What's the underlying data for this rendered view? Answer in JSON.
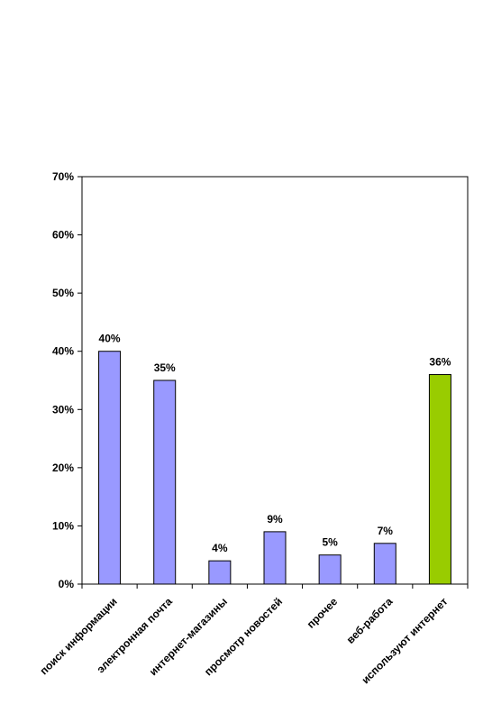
{
  "chart_data": {
    "type": "bar",
    "categories": [
      "поиск информации",
      "электронная почта",
      "интернет-магазины",
      "просмотр новостей",
      "прочее",
      "веб-работа",
      "используют интернет"
    ],
    "values": [
      40,
      35,
      4,
      9,
      5,
      7,
      36
    ],
    "data_labels": [
      "40%",
      "35%",
      "4%",
      "9%",
      "5%",
      "7%",
      "36%"
    ],
    "ylim": [
      0,
      70
    ],
    "yticks": [
      0,
      10,
      20,
      30,
      40,
      50,
      60,
      70
    ],
    "ytick_labels": [
      "0%",
      "10%",
      "20%",
      "30%",
      "40%",
      "50%",
      "60%",
      "70%"
    ],
    "grid": false,
    "colors": {
      "bar": "#9999FF",
      "highlight_bar": "#99CC00",
      "highlight_index": 6,
      "border": "#000000"
    }
  }
}
